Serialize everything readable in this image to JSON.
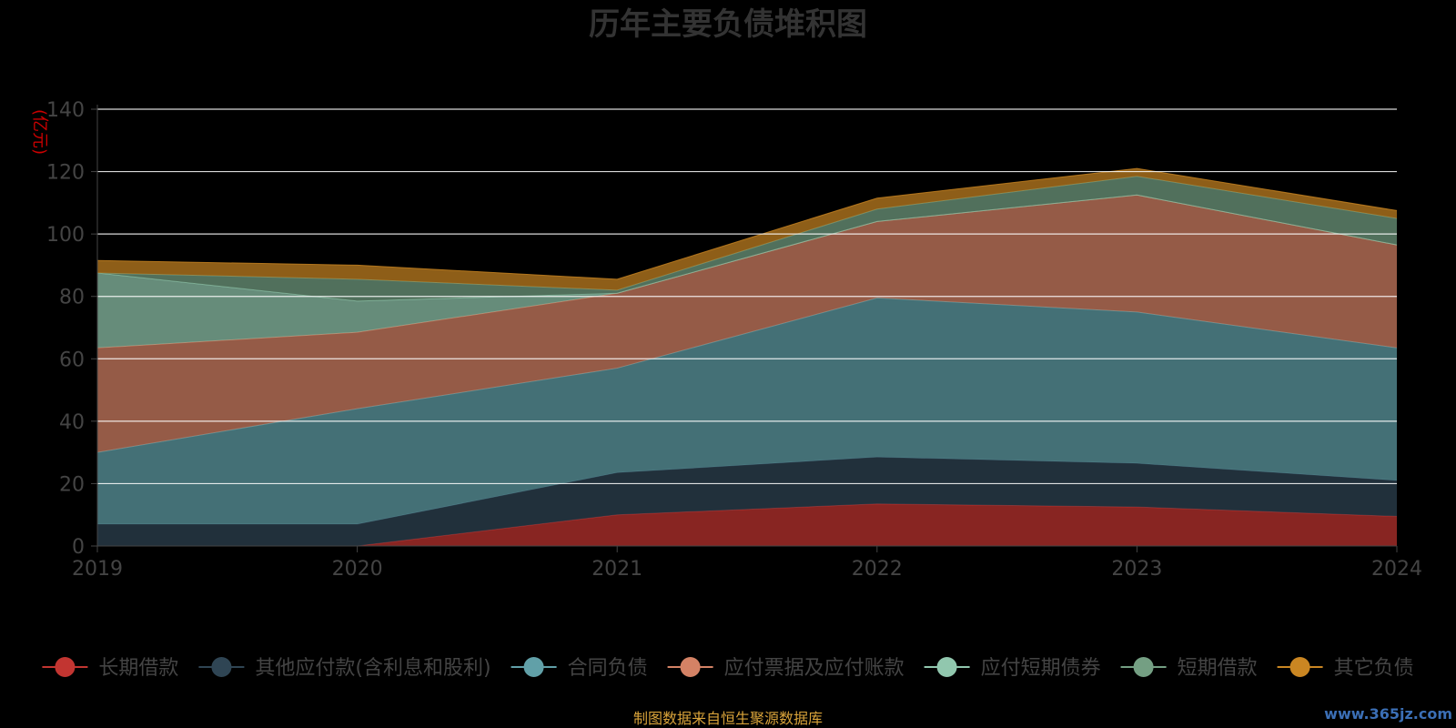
{
  "chart_data": {
    "type": "area",
    "stacked": true,
    "title": "历年主要负债堆积图",
    "unit_label": "(亿元)",
    "categories": [
      "2019",
      "2020",
      "2021",
      "2022",
      "2023",
      "2024"
    ],
    "ylim": [
      0,
      140
    ],
    "yticks": [
      "0",
      "20",
      "40",
      "60",
      "80",
      "100",
      "120",
      "140"
    ],
    "grid": true,
    "legend_position": "bottom",
    "series": [
      {
        "name": "长期借款",
        "color": "#c23531",
        "values": [
          0,
          0,
          10,
          13.5,
          12.5,
          9.5
        ]
      },
      {
        "name": "其他应付款(含利息和股利)",
        "color": "#2f4554",
        "values": [
          7,
          7,
          13.5,
          15,
          14,
          11.5
        ]
      },
      {
        "name": "合同负债",
        "color": "#61a0a8",
        "values": [
          23,
          37,
          33.5,
          51,
          48.5,
          42.5
        ]
      },
      {
        "name": "应付票据及应付账款",
        "color": "#d48265",
        "values": [
          33.5,
          24.5,
          24,
          24.5,
          37.5,
          33
        ]
      },
      {
        "name": "应付短期债券",
        "color": "#91c7ae",
        "values": [
          24,
          10,
          0,
          0,
          0,
          0
        ]
      },
      {
        "name": "短期借款",
        "color": "#749f83",
        "values": [
          0,
          7,
          1,
          4,
          6,
          8.5
        ]
      },
      {
        "name": "其它负债",
        "color": "#ca8622",
        "values": [
          4,
          4.5,
          3.5,
          3.5,
          2.5,
          2.5
        ]
      }
    ]
  },
  "footer": {
    "source": "制图数据来自恒生聚源数据库",
    "watermark": "www.365jz.com"
  }
}
